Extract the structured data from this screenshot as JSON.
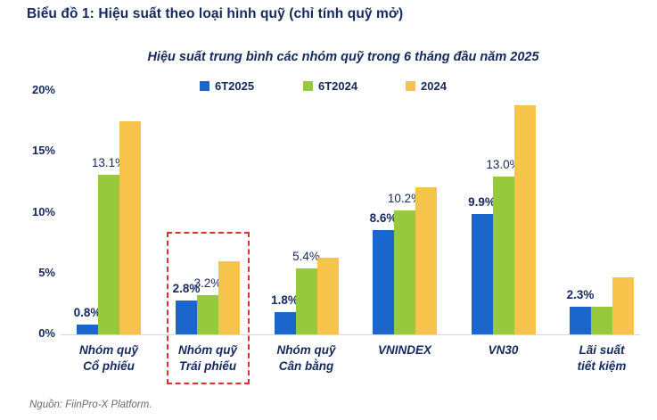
{
  "header": {
    "title": "Biểu đồ 1: Hiệu suất theo loại hình quỹ (chỉ tính quỹ mở)"
  },
  "source": {
    "text": "Nguồn: FiinPro-X Platform."
  },
  "colors": {
    "navy_text": "#14295E",
    "blue_series": "#1A66CC",
    "green_series": "#97C93D",
    "yellow_series": "#F6C44B",
    "highlight_red": "#E03131",
    "axis_line": "#D8D8D8",
    "source_gray": "#6A6A6A"
  },
  "chart_data": {
    "type": "bar",
    "title": "Hiệu suất trung bình các nhóm quỹ trong 6 tháng đầu năm 2025",
    "categories": [
      "Nhóm quỹ\nCổ phiếu",
      "Nhóm quỹ\nTrái phiếu",
      "Nhóm quỹ\nCân bằng",
      "VNINDEX",
      "VN30",
      "Lãi suất\ntiết kiệm"
    ],
    "series": [
      {
        "name": "6T2025",
        "color": "#1A66CC",
        "values": [
          0.8,
          2.8,
          1.8,
          8.6,
          9.9,
          2.3
        ],
        "labels": [
          "0.8%",
          "2.8%",
          "1.8%",
          "8.6%",
          "9.9%",
          "2.3%"
        ]
      },
      {
        "name": "6T2024",
        "color": "#97C93D",
        "values": [
          13.1,
          3.2,
          5.4,
          10.2,
          13.0,
          2.3
        ],
        "labels": [
          "13.1%",
          "3.2%",
          "5.4%",
          "10.2%",
          "13.0%",
          null
        ]
      },
      {
        "name": "2024",
        "color": "#F6C44B",
        "values": [
          17.5,
          6.0,
          6.3,
          12.1,
          18.8,
          4.7
        ],
        "labels": [
          null,
          null,
          null,
          null,
          null,
          null
        ]
      }
    ],
    "y_ticks": [
      "0%",
      "5%",
      "10%",
      "15%",
      "20%"
    ],
    "y_tick_values": [
      0,
      5,
      10,
      15,
      20
    ],
    "ylim": [
      0,
      20
    ],
    "grid": false,
    "legend_position": "top",
    "highlight": {
      "category_index": 1,
      "label": "Nhóm quỹ Trái phiếu",
      "style": "red-dashed-box"
    }
  }
}
